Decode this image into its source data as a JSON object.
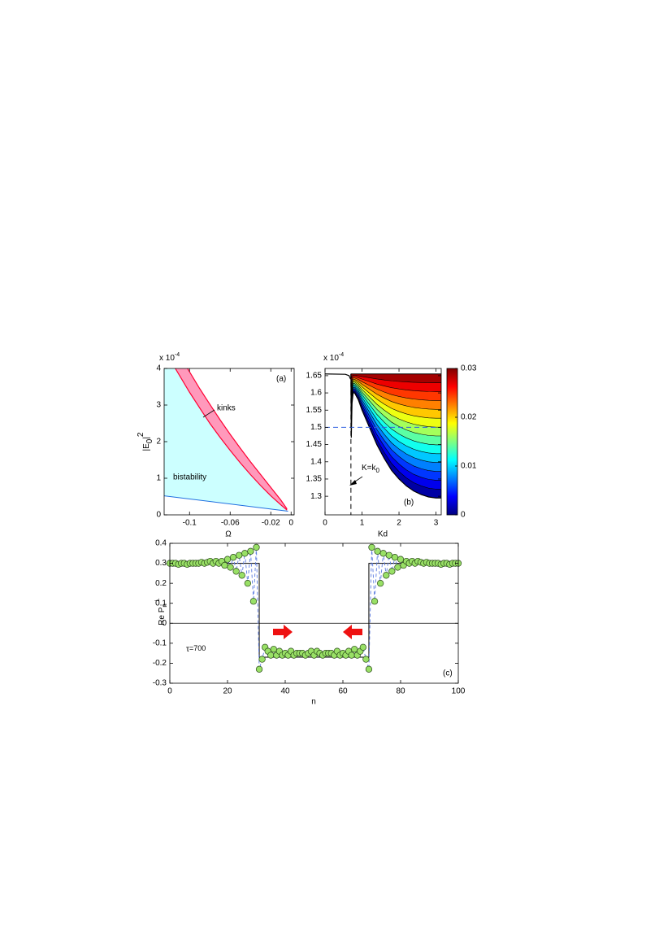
{
  "chart_data": [
    {
      "type": "area",
      "label": "(a)",
      "multiplier": {
        "base": "x 10",
        "exp": "-4"
      },
      "xlabel": "Ω",
      "ylabel": {
        "main": "|E",
        "sub": "0",
        "post": "|",
        "sup": "2"
      },
      "annotations": [
        "kinks",
        "bistability"
      ],
      "xlim": [
        -0.125,
        0.003
      ],
      "xticks": [
        -0.1,
        -0.06,
        -0.02,
        0
      ],
      "ylim": [
        0,
        4
      ],
      "yticks": [
        0,
        1,
        2,
        3,
        4
      ],
      "bistability_color": "#ccffff",
      "kinks_color": "#ff99bb",
      "edge_color": "#ff0033",
      "lower_line": {
        "color": "#1f6fe0",
        "x": [
          -0.125,
          -0.003
        ],
        "y": [
          0.52,
          0.1
        ]
      },
      "kink_lower": {
        "x": [
          -0.114,
          -0.1,
          -0.09,
          -0.08,
          -0.07,
          -0.06,
          -0.05,
          -0.04,
          -0.03,
          -0.02,
          -0.01,
          -0.004
        ],
        "y": [
          4,
          3.35,
          2.92,
          2.5,
          2.12,
          1.76,
          1.42,
          1.1,
          0.8,
          0.52,
          0.27,
          0.13
        ]
      },
      "kink_upper": {
        "x": [
          -0.102,
          -0.09,
          -0.08,
          -0.07,
          -0.06,
          -0.05,
          -0.04,
          -0.03,
          -0.02,
          -0.01,
          -0.004
        ],
        "y": [
          4,
          3.45,
          3.02,
          2.6,
          2.2,
          1.82,
          1.45,
          1.1,
          0.75,
          0.4,
          0.16
        ]
      }
    },
    {
      "type": "contour",
      "label": "(b)",
      "multiplier": {
        "base": "x 10",
        "exp": "-4"
      },
      "xlabel": "Kd",
      "annotation": {
        "main": "K=k",
        "sub": "0"
      },
      "xlim": [
        0,
        3.1416
      ],
      "xticks": [
        0,
        1,
        2,
        3
      ],
      "ylim": [
        1.246,
        1.671
      ],
      "yticks": [
        1.3,
        1.35,
        1.4,
        1.45,
        1.5,
        1.55,
        1.6,
        1.65
      ],
      "top": 1.655,
      "left_line": {
        "x": [
          0,
          0.55,
          0.65,
          0.69
        ],
        "y": [
          1.655,
          1.654,
          1.65,
          1.64
        ]
      },
      "boundary": {
        "x": [
          0.7,
          0.71,
          0.73,
          0.76,
          0.8,
          0.9,
          1.0,
          1.2,
          1.4,
          1.6,
          1.8,
          2.0,
          2.2,
          2.4,
          2.6,
          2.8,
          3.0,
          3.1416
        ],
        "y": [
          1.655,
          1.47,
          1.57,
          1.6,
          1.6,
          1.58,
          1.55,
          1.5,
          1.45,
          1.41,
          1.375,
          1.35,
          1.33,
          1.315,
          1.305,
          1.298,
          1.295,
          1.295
        ]
      },
      "threshold": 1.5,
      "threshold_color": "#3060e0",
      "k0": 0.7,
      "colorbar": {
        "lim": [
          0,
          0.03
        ],
        "ticks": [
          0,
          0.01,
          0.02,
          0.03
        ]
      }
    },
    {
      "type": "scatter",
      "label": "(c)",
      "xlabel": "n",
      "ylabel": {
        "main": "Re P",
        "sub": "n",
        "sup": "⊥"
      },
      "annotation": {
        "symbol": "τ",
        "text": "=700"
      },
      "xlim": [
        0,
        100
      ],
      "xticks": [
        0,
        20,
        40,
        60,
        80,
        100
      ],
      "ylim": [
        -0.3,
        0.4
      ],
      "yticks": [
        -0.3,
        -0.2,
        -0.1,
        0,
        0.1,
        0.2,
        0.3,
        0.4
      ],
      "hline": 0,
      "step": {
        "x": [
          0,
          31,
          31,
          69,
          69,
          100
        ],
        "y": [
          0.3,
          0.3,
          -0.17,
          -0.17,
          0.3,
          0.3
        ]
      },
      "series": [
        {
          "color": "#99e066",
          "line_color": "#5b7be0",
          "x": [
            0,
            1,
            2,
            3,
            4,
            5,
            6,
            7,
            8,
            9,
            10,
            11,
            12,
            13,
            14,
            15,
            16,
            17,
            18,
            19,
            20,
            21,
            22,
            23,
            24,
            25,
            26,
            27,
            28,
            29,
            30,
            31,
            32,
            33,
            34,
            35,
            36,
            37,
            38,
            39,
            40,
            41,
            42,
            43,
            44,
            45,
            46,
            47,
            48,
            49,
            50,
            51,
            52,
            53,
            54,
            55,
            56,
            57,
            58,
            59,
            60,
            61,
            62,
            63,
            64,
            65,
            66,
            67,
            68,
            69,
            70,
            71,
            72,
            73,
            74,
            75,
            76,
            77,
            78,
            79,
            80,
            81,
            82,
            83,
            84,
            85,
            86,
            87,
            88,
            89,
            90,
            91,
            92,
            93,
            94,
            95,
            96,
            97,
            98,
            99,
            100
          ],
          "values": [
            0.3,
            0.3,
            0.3,
            0.295,
            0.3,
            0.3,
            0.295,
            0.3,
            0.3,
            0.3,
            0.3,
            0.305,
            0.3,
            0.305,
            0.31,
            0.3,
            0.31,
            0.3,
            0.31,
            0.29,
            0.32,
            0.28,
            0.33,
            0.26,
            0.34,
            0.24,
            0.35,
            0.2,
            0.36,
            0.11,
            0.38,
            -0.23,
            -0.18,
            -0.12,
            -0.14,
            -0.16,
            -0.13,
            -0.16,
            -0.14,
            -0.16,
            -0.15,
            -0.16,
            -0.14,
            -0.16,
            -0.15,
            -0.15,
            -0.15,
            -0.16,
            -0.15,
            -0.14,
            -0.16,
            -0.14,
            -0.15,
            -0.16,
            -0.15,
            -0.15,
            -0.15,
            -0.16,
            -0.14,
            -0.16,
            -0.15,
            -0.16,
            -0.14,
            -0.16,
            -0.13,
            -0.16,
            -0.14,
            -0.12,
            -0.18,
            -0.23,
            0.38,
            0.11,
            0.36,
            0.2,
            0.35,
            0.24,
            0.34,
            0.26,
            0.33,
            0.28,
            0.32,
            0.29,
            0.31,
            0.3,
            0.31,
            0.3,
            0.31,
            0.305,
            0.3,
            0.305,
            0.3,
            0.3,
            0.3,
            0.3,
            0.295,
            0.3,
            0.3,
            0.295,
            0.3,
            0.3,
            0.3
          ]
        }
      ]
    }
  ]
}
